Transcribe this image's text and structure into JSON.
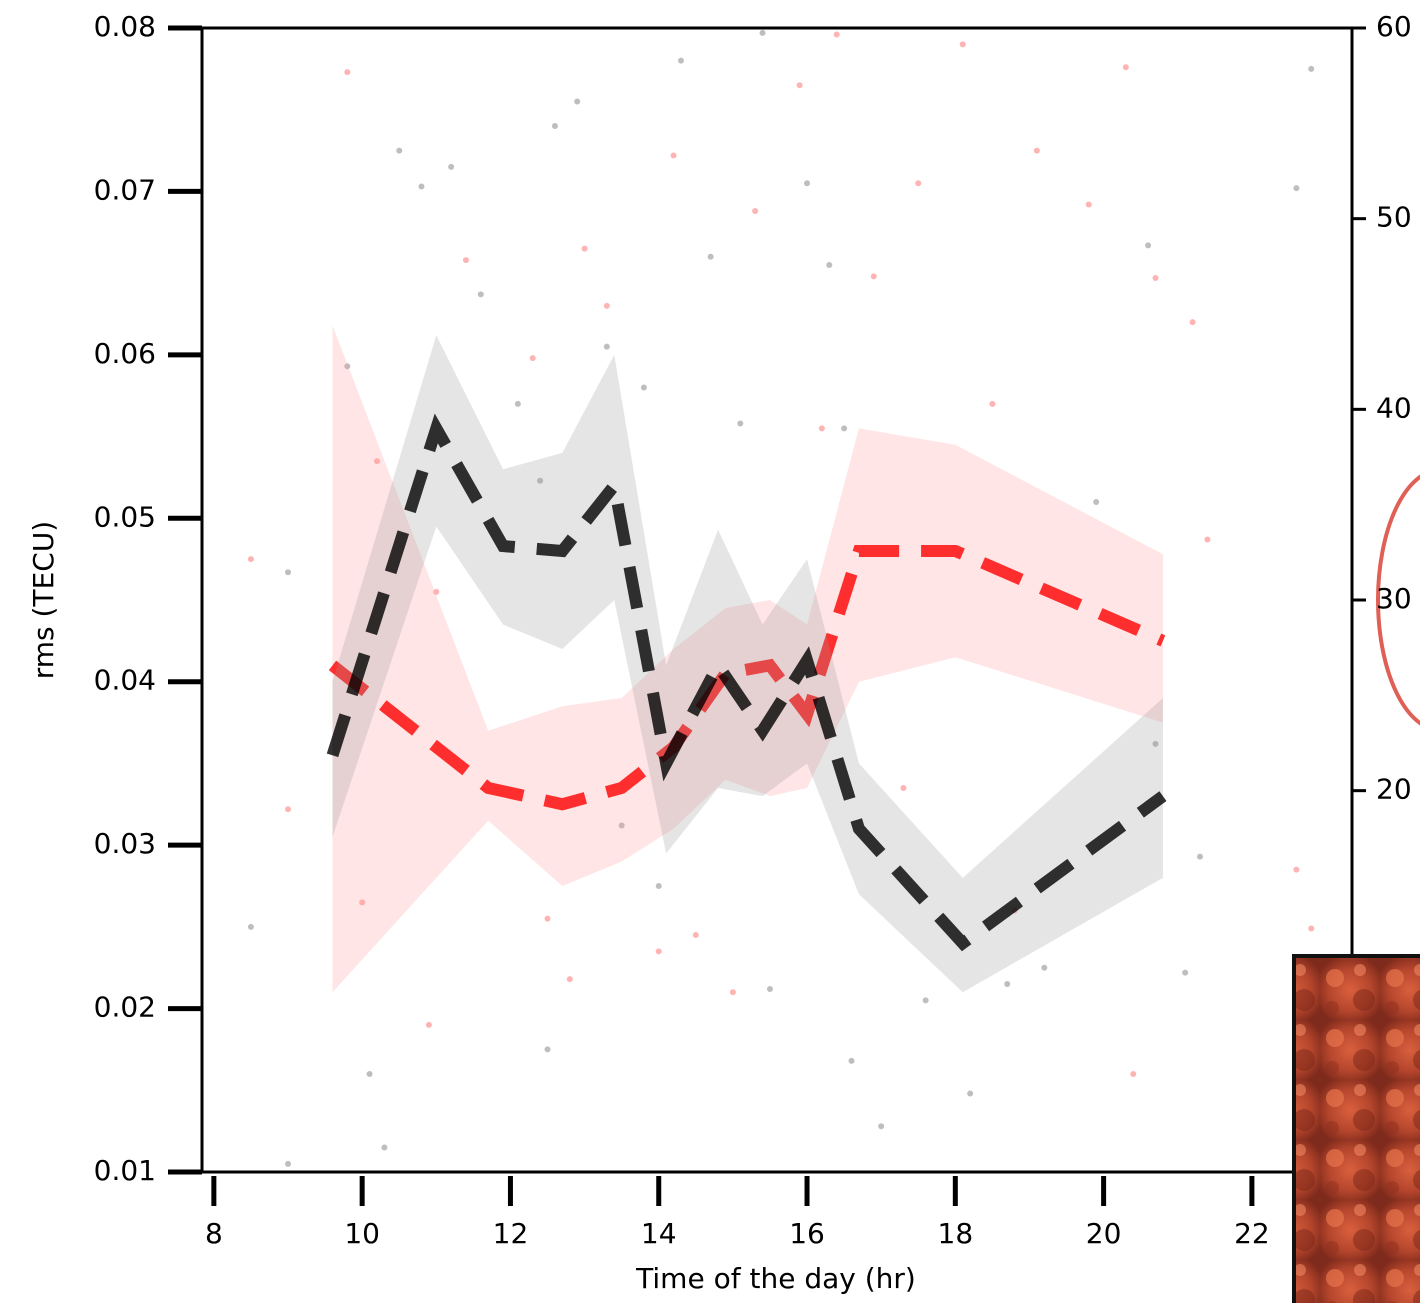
{
  "chart_data": {
    "type": "line",
    "x_label": "Time of the day (hr)",
    "y_label": "rms (TECU)",
    "xlim": [
      7.84,
      23.35
    ],
    "xticks": [
      8,
      10,
      12,
      14,
      16,
      18,
      20,
      22
    ],
    "ylim": [
      0.01,
      0.08
    ],
    "yticks": [
      0.01,
      0.02,
      0.03,
      0.04,
      0.05,
      0.06,
      0.07,
      0.08
    ],
    "y2lim": [
      0,
      60
    ],
    "y2ticks": [
      20,
      30,
      40,
      50,
      60
    ],
    "series": [
      {
        "color": "#ff0000",
        "band_color": "#ff9999",
        "x": [
          9.6,
          11.7,
          12.7,
          13.5,
          14.2,
          14.9,
          15.5,
          16.0,
          16.7,
          18.0,
          20.8
        ],
        "values": [
          0.041,
          0.0335,
          0.0325,
          0.0335,
          0.036,
          0.0405,
          0.041,
          0.038,
          0.048,
          0.048,
          0.0425
        ],
        "upper": [
          0.0618,
          0.037,
          0.0385,
          0.039,
          0.042,
          0.0445,
          0.045,
          0.0435,
          0.0555,
          0.0545,
          0.0478
        ],
        "lower": [
          0.021,
          0.0315,
          0.0275,
          0.029,
          0.031,
          0.034,
          0.033,
          0.0335,
          0.04,
          0.0415,
          0.0375
        ]
      },
      {
        "color": "#000000",
        "band_color": "#999999",
        "x": [
          9.6,
          11.0,
          11.9,
          12.7,
          13.4,
          14.1,
          14.8,
          15.4,
          16.0,
          16.7,
          18.1,
          20.8
        ],
        "values": [
          0.0355,
          0.0555,
          0.0483,
          0.048,
          0.052,
          0.035,
          0.041,
          0.037,
          0.0413,
          0.031,
          0.024,
          0.033
        ],
        "upper": [
          0.04,
          0.0612,
          0.053,
          0.054,
          0.06,
          0.041,
          0.0493,
          0.0435,
          0.0475,
          0.035,
          0.028,
          0.039
        ],
        "lower": [
          0.0305,
          0.0495,
          0.0435,
          0.042,
          0.045,
          0.0295,
          0.0335,
          0.033,
          0.035,
          0.027,
          0.021,
          0.028
        ]
      }
    ],
    "scatter": [
      {
        "color": "#888888",
        "x": [
          9.0,
          8.5,
          9.0,
          9.8,
          10.1,
          10.3,
          10.5,
          10.8,
          11.2,
          11.6,
          12.1,
          12.4,
          12.6,
          12.9,
          13.3,
          13.8,
          14.3,
          14.7,
          15.1,
          15.4,
          16.0,
          16.3,
          16.5,
          17.0,
          17.6,
          18.2,
          18.7,
          19.2,
          19.9,
          20.6,
          20.7,
          21.1,
          21.3,
          22.6,
          22.8,
          13.5,
          14.0,
          15.5,
          16.6,
          12.5
        ],
        "values": [
          0.0105,
          0.025,
          0.0467,
          0.0593,
          0.016,
          0.0115,
          0.0725,
          0.0703,
          0.0715,
          0.0637,
          0.057,
          0.0523,
          0.074,
          0.0755,
          0.0605,
          0.058,
          0.078,
          0.066,
          0.0558,
          0.0797,
          0.0705,
          0.0655,
          0.0555,
          0.0128,
          0.0205,
          0.0148,
          0.0215,
          0.0225,
          0.051,
          0.0667,
          0.0362,
          0.0222,
          0.0293,
          0.0702,
          0.0775,
          0.0312,
          0.0275,
          0.0212,
          0.0168,
          0.0175
        ]
      },
      {
        "color": "#ff7777",
        "x": [
          8.5,
          9.0,
          9.8,
          10.2,
          10.9,
          11.4,
          12.3,
          12.5,
          13.0,
          13.3,
          14.0,
          14.2,
          15.3,
          15.9,
          16.4,
          16.9,
          17.5,
          18.1,
          18.5,
          19.1,
          19.8,
          20.3,
          20.7,
          21.2,
          21.4,
          22.6,
          22.8,
          20.4,
          18.8,
          14.5,
          12.8,
          11.0,
          10.0,
          15.0,
          16.2,
          17.3
        ],
        "values": [
          0.0475,
          0.0322,
          0.0773,
          0.0535,
          0.019,
          0.0658,
          0.0598,
          0.0255,
          0.0665,
          0.063,
          0.0235,
          0.0722,
          0.0688,
          0.0765,
          0.0796,
          0.0648,
          0.0705,
          0.079,
          0.057,
          0.0725,
          0.0692,
          0.0776,
          0.0647,
          0.062,
          0.0487,
          0.0285,
          0.0249,
          0.016,
          0.026,
          0.0245,
          0.0218,
          0.0455,
          0.0265,
          0.021,
          0.0555,
          0.0335
        ]
      }
    ]
  }
}
